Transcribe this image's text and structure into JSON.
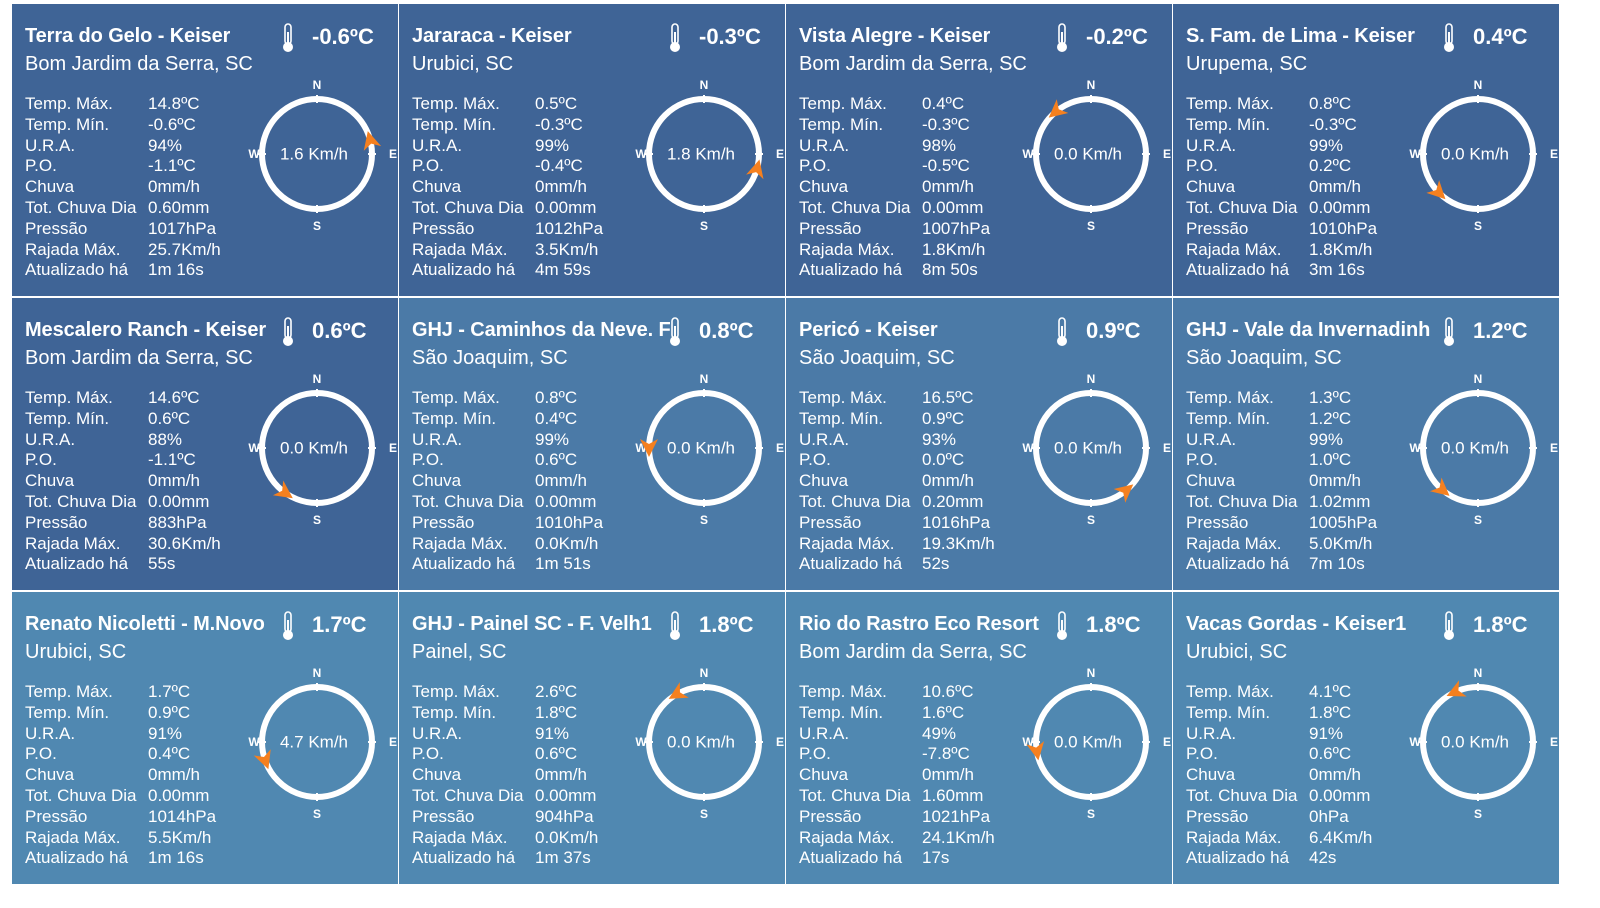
{
  "colors": {
    "card_dark": "#3f6496",
    "card_medium": "#4b7aa7",
    "card_light": "#5088b1",
    "arrow": "#f5801f"
  },
  "stat_labels": [
    "Temp. Máx.",
    "Temp. Mín.",
    "U.R.A.",
    "P.O.",
    "Chuva",
    "Tot. Chuva Dia",
    "Pressão",
    "Rajada Máx.",
    "Atualizado há"
  ],
  "compass_labels": {
    "n": "N",
    "s": "S",
    "e": "E",
    "w": "W"
  },
  "stations": [
    {
      "name": "Terra do Gelo - Keiser",
      "location": "Bom Jardim da Serra, SC",
      "temp": "-0.6ºC",
      "wind": "1.6 Km/h",
      "wind_direction_deg": 75,
      "shade": "dark",
      "stats": [
        "14.8ºC",
        "-0.6ºC",
        "94%",
        "-1.1ºC",
        "0mm/h",
        "0.60mm",
        "1017hPa",
        "25.7Km/h",
        "1m 16s"
      ]
    },
    {
      "name": "Jararaca - Keiser",
      "location": "Urubici, SC",
      "temp": "-0.3ºC",
      "wind": "1.8 Km/h",
      "wind_direction_deg": 105,
      "shade": "dark",
      "stats": [
        "0.5ºC",
        "-0.3ºC",
        "99%",
        "-0.4ºC",
        "0mm/h",
        "0.00mm",
        "1012hPa",
        "3.5Km/h",
        "4m 59s"
      ]
    },
    {
      "name": "Vista Alegre - Keiser",
      "location": "Bom Jardim da Serra, SC",
      "temp": "-0.2ºC",
      "wind": "0.0 Km/h",
      "wind_direction_deg": 320,
      "shade": "dark",
      "stats": [
        "0.4ºC",
        "-0.3ºC",
        "98%",
        "-0.5ºC",
        "0mm/h",
        "0.00mm",
        "1007hPa",
        "1.8Km/h",
        "8m 50s"
      ]
    },
    {
      "name": "S. Fam. de Lima - Keiser",
      "location": "Urupema, SC",
      "temp": "0.4ºC",
      "wind": "0.0 Km/h",
      "wind_direction_deg": 225,
      "shade": "dark",
      "stats": [
        "0.8ºC",
        "-0.3ºC",
        "99%",
        "0.2ºC",
        "0mm/h",
        "0.00mm",
        "1010hPa",
        "1.8Km/h",
        "3m 16s"
      ]
    },
    {
      "name": "Mescalero Ranch - Keiser",
      "location": "Bom Jardim da Serra, SC",
      "temp": "0.6ºC",
      "wind": "0.0 Km/h",
      "wind_direction_deg": 215,
      "shade": "dark",
      "stats": [
        "14.6ºC",
        "0.6ºC",
        "88%",
        "-1.1ºC",
        "0mm/h",
        "0.00mm",
        "883hPa",
        "30.6Km/h",
        "55s"
      ]
    },
    {
      "name": "GHJ - Caminhos da Neve. F",
      "location": "São Joaquim, SC",
      "temp": "0.8ºC",
      "wind": "0.0 Km/h",
      "wind_direction_deg": 270,
      "shade": "medium",
      "stats": [
        "0.8ºC",
        "0.4ºC",
        "99%",
        "0.6ºC",
        "0mm/h",
        "0.00mm",
        "1010hPa",
        "0.0Km/h",
        "1m 51s"
      ]
    },
    {
      "name": "Pericó - Keiser",
      "location": "São Joaquim, SC",
      "temp": "0.9ºC",
      "wind": "0.0 Km/h",
      "wind_direction_deg": 140,
      "shade": "medium",
      "stats": [
        "16.5ºC",
        "0.9ºC",
        "93%",
        "0.0ºC",
        "0mm/h",
        "0.20mm",
        "1016hPa",
        "19.3Km/h",
        "52s"
      ]
    },
    {
      "name": "GHJ - Vale da Invernadinh",
      "location": "São Joaquim, SC",
      "temp": "1.2ºC",
      "wind": "0.0 Km/h",
      "wind_direction_deg": 220,
      "shade": "medium",
      "stats": [
        "1.3ºC",
        "1.2ºC",
        "99%",
        "1.0ºC",
        "0mm/h",
        "1.02mm",
        "1005hPa",
        "5.0Km/h",
        "7m 10s"
      ]
    },
    {
      "name": "Renato Nicoletti - M.Novo",
      "location": "Urubici, SC",
      "temp": "1.7ºC",
      "wind": "4.7 Km/h",
      "wind_direction_deg": 250,
      "shade": "light",
      "stats": [
        "1.7ºC",
        "0.9ºC",
        "91%",
        "0.4ºC",
        "0mm/h",
        "0.00mm",
        "1014hPa",
        "5.5Km/h",
        "1m 16s"
      ]
    },
    {
      "name": "GHJ - Painel SC - F. Velh1",
      "location": "Painel, SC",
      "temp": "1.8ºC",
      "wind": "0.0 Km/h",
      "wind_direction_deg": 330,
      "shade": "light",
      "stats": [
        "2.6ºC",
        "1.8ºC",
        "91%",
        "0.6ºC",
        "0mm/h",
        "0.00mm",
        "904hPa",
        "0.0Km/h",
        "1m 37s"
      ]
    },
    {
      "name": "Rio do Rastro Eco Resort",
      "location": "Bom Jardim da Serra, SC",
      "temp": "1.8ºC",
      "wind": "0.0 Km/h",
      "wind_direction_deg": 260,
      "shade": "light",
      "stats": [
        "10.6ºC",
        "1.6ºC",
        "49%",
        "-7.8ºC",
        "0mm/h",
        "1.60mm",
        "1021hPa",
        "24.1Km/h",
        "17s"
      ]
    },
    {
      "name": "Vacas Gordas - Keiser1",
      "location": "Urubici, SC",
      "temp": "1.8ºC",
      "wind": "0.0 Km/h",
      "wind_direction_deg": 335,
      "shade": "light",
      "stats": [
        "4.1ºC",
        "1.8ºC",
        "91%",
        "0.6ºC",
        "0mm/h",
        "0.00mm",
        "0hPa",
        "6.4Km/h",
        "42s"
      ]
    }
  ]
}
